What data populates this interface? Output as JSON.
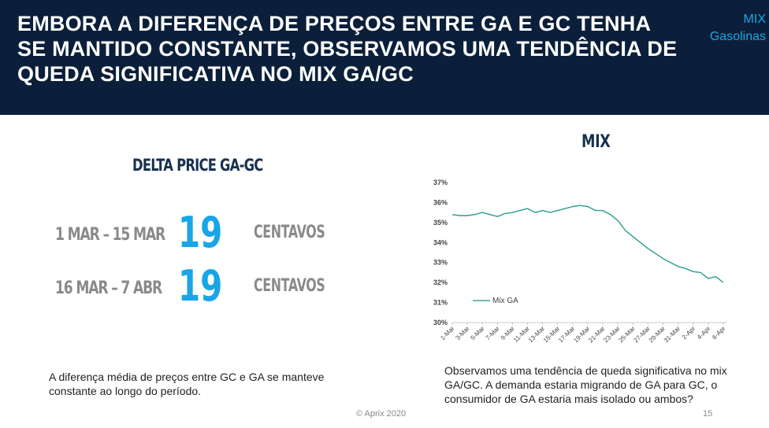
{
  "header": {
    "title": "EMBORA A DIFERENÇA DE PREÇOS ENTRE GA E GC TENHA SE MANTIDO CONSTANTE, OBSERVAMOS UMA TENDÊNCIA DE QUEDA SIGNIFICATIVA NO MIX GA/GC",
    "tag_line1": "MIX",
    "tag_line2": "Gasolinas"
  },
  "delta": {
    "title": "DELTA PRICE GA-GC",
    "rows": [
      {
        "period": "1 MAR – 15 MAR",
        "value": "19",
        "unit": "CENTAVOS"
      },
      {
        "period": "16 MAR – 7 ABR",
        "value": "19",
        "unit": "CENTAVOS"
      }
    ],
    "note": "A diferença média de preços entre GC e GA se manteve constante ao longo do período."
  },
  "mix": {
    "title": "MIX",
    "note": "Observamos uma tendência de queda significativa no mix GA/GC. A demanda estaria migrando de GA para GC, o consumidor de GA estaria mais isolado ou ambos?"
  },
  "chart_data": {
    "type": "line",
    "title": "MIX",
    "x": [
      "1-Mar",
      "2-Mar",
      "3-Mar",
      "4-Mar",
      "5-Mar",
      "6-Mar",
      "7-Mar",
      "8-Mar",
      "9-Mar",
      "10-Mar",
      "11-Mar",
      "12-Mar",
      "13-Mar",
      "14-Mar",
      "15-Mar",
      "16-Mar",
      "17-Mar",
      "18-Mar",
      "19-Mar",
      "20-Mar",
      "21-Mar",
      "22-Mar",
      "23-Mar",
      "24-Mar",
      "25-Mar",
      "26-Mar",
      "27-Mar",
      "28-Mar",
      "29-Mar",
      "30-Mar",
      "31-Mar",
      "1-Apr",
      "2-Apr",
      "3-Apr",
      "4-Apr",
      "5-Apr",
      "6-Apr"
    ],
    "xtick_labels": [
      "1-Mar",
      "3-Mar",
      "5-Mar",
      "7-Mar",
      "9-Mar",
      "11-Mar",
      "13-Mar",
      "15-Mar",
      "17-Mar",
      "19-Mar",
      "21-Mar",
      "23-Mar",
      "25-Mar",
      "27-Mar",
      "29-Mar",
      "31-Mar",
      "2-Apr",
      "4-Apr",
      "6-Apr"
    ],
    "series": [
      {
        "name": "Mix GA",
        "color": "#2a9d8f",
        "values": [
          35.4,
          35.35,
          35.35,
          35.4,
          35.5,
          35.4,
          35.3,
          35.45,
          35.5,
          35.6,
          35.7,
          35.5,
          35.6,
          35.5,
          35.6,
          35.7,
          35.8,
          35.85,
          35.8,
          35.6,
          35.6,
          35.4,
          35.1,
          34.6,
          34.3,
          34.0,
          33.7,
          33.45,
          33.2,
          33.0,
          32.8,
          32.7,
          32.55,
          32.5,
          32.2,
          32.3,
          32.0
        ]
      }
    ],
    "ylim": [
      30,
      37
    ],
    "yticks": [
      "30%",
      "31%",
      "32%",
      "33%",
      "34%",
      "35%",
      "36%",
      "37%"
    ],
    "ytick_values": [
      30,
      31,
      32,
      33,
      34,
      35,
      36,
      37
    ],
    "grid": false,
    "legend": "inside-left"
  },
  "footer": {
    "copyright": "© Aprix 2020",
    "page": "15"
  }
}
